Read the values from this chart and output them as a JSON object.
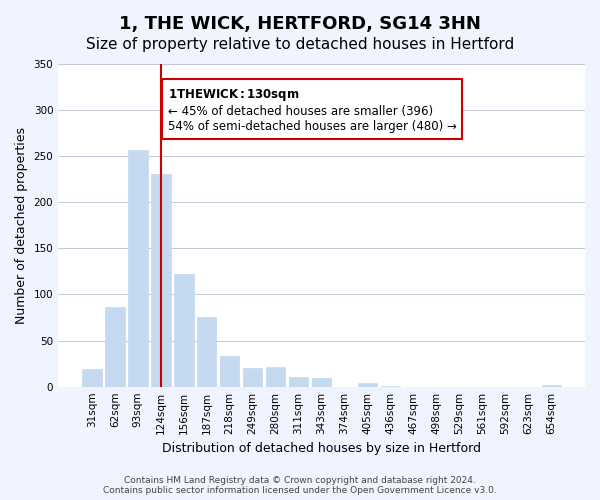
{
  "title": "1, THE WICK, HERTFORD, SG14 3HN",
  "subtitle": "Size of property relative to detached houses in Hertford",
  "xlabel": "Distribution of detached houses by size in Hertford",
  "ylabel": "Number of detached properties",
  "categories": [
    "31sqm",
    "62sqm",
    "93sqm",
    "124sqm",
    "156sqm",
    "187sqm",
    "218sqm",
    "249sqm",
    "280sqm",
    "311sqm",
    "343sqm",
    "374sqm",
    "405sqm",
    "436sqm",
    "467sqm",
    "498sqm",
    "529sqm",
    "561sqm",
    "592sqm",
    "623sqm",
    "654sqm"
  ],
  "values": [
    19,
    86,
    257,
    231,
    122,
    76,
    33,
    20,
    21,
    11,
    9,
    0,
    4,
    1,
    0,
    0,
    0,
    0,
    0,
    0,
    2
  ],
  "bar_color": "#c5d9f1",
  "highlight_bar_index": 3,
  "highlight_line_color": "#cc0000",
  "ylim": [
    0,
    350
  ],
  "yticks": [
    0,
    50,
    100,
    150,
    200,
    250,
    300,
    350
  ],
  "annotation_title": "1 THE WICK: 130sqm",
  "annotation_line1": "← 45% of detached houses are smaller (396)",
  "annotation_line2": "54% of semi-detached houses are larger (480) →",
  "annotation_box_color": "#ffffff",
  "annotation_box_edge_color": "#cc0000",
  "footer_line1": "Contains HM Land Registry data © Crown copyright and database right 2024.",
  "footer_line2": "Contains public sector information licensed under the Open Government Licence v3.0.",
  "background_color": "#f0f4ff",
  "plot_background_color": "#ffffff",
  "grid_color": "#c0c8d8",
  "title_fontsize": 13,
  "subtitle_fontsize": 11,
  "tick_fontsize": 7.5,
  "ylabel_fontsize": 9,
  "xlabel_fontsize": 9
}
